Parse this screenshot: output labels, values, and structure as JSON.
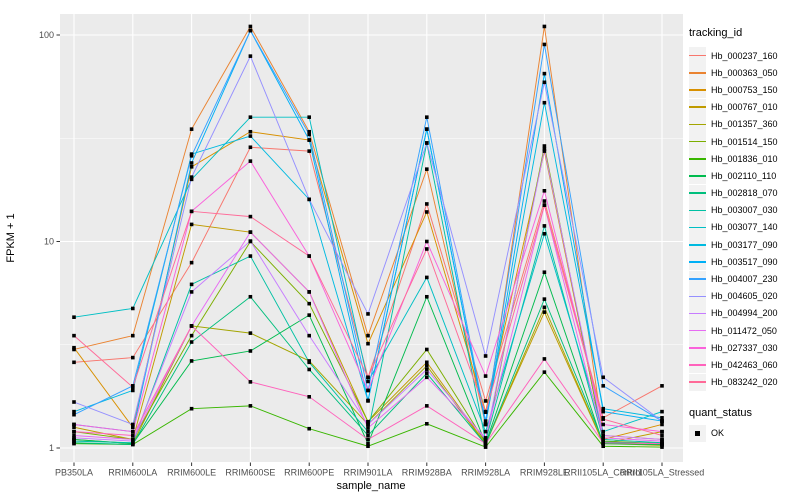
{
  "chart_data": {
    "type": "line",
    "xlabel": "sample_name",
    "ylabel": "FPKM + 1",
    "y_scale": "log10",
    "y_ticks": [
      1,
      10,
      100
    ],
    "ylim": [
      0.87,
      125
    ],
    "grid": true,
    "panel_color": "#EBEBEB",
    "gridline_color": "#FFFFFF",
    "point_marker": {
      "shape": "square",
      "color": "#000000"
    },
    "legend_title": "tracking_id",
    "quant_legend": {
      "title": "quant_status",
      "items": [
        {
          "label": "OK"
        }
      ]
    },
    "x_categories": [
      "PB350LA",
      "RRIM600LA",
      "RRIM600LE",
      "RRIM600SE",
      "RRIM600PE",
      "RRIM901LA",
      "RRIM928BA",
      "RRIM928LA",
      "RRIM928LE",
      "RRII105LA_Control",
      "RRII105LA_Stressed"
    ],
    "series": [
      {
        "name": "Hb_000237_160",
        "color": "#F8766D",
        "values": [
          2.6,
          2.74,
          7.9,
          28.6,
          27.4,
          2.2,
          15.2,
          1.69,
          15.7,
          1.4,
          2.0
        ]
      },
      {
        "name": "Hb_000363_050",
        "color": "#EA8331",
        "values": [
          3.0,
          3.5,
          35,
          110,
          34,
          3.5,
          22.4,
          1.3,
          110,
          1.15,
          1.1
        ]
      },
      {
        "name": "Hb_000753_150",
        "color": "#D89000",
        "values": [
          3.06,
          1.26,
          23,
          34,
          31,
          3.2,
          13.9,
          1.5,
          27.4,
          1.1,
          1.3
        ]
      },
      {
        "name": "Hb_000767_010",
        "color": "#C09B00",
        "values": [
          1.26,
          1.1,
          12.1,
          11.1,
          5.7,
          1.34,
          2.6,
          1.05,
          4.55,
          1.05,
          1.2
        ]
      },
      {
        "name": "Hb_001357_360",
        "color": "#A3A500",
        "values": [
          1.1,
          1.05,
          3.9,
          3.6,
          2.64,
          1.3,
          2.5,
          1.04,
          4.8,
          1.05,
          1.03
        ]
      },
      {
        "name": "Hb_001514_150",
        "color": "#7CAE00",
        "values": [
          1.2,
          1.1,
          3.5,
          10.0,
          5.0,
          1.34,
          3.0,
          1.06,
          29,
          1.08,
          1.05
        ]
      },
      {
        "name": "Hb_001836_010",
        "color": "#39B600",
        "values": [
          1.05,
          1.04,
          1.55,
          1.6,
          1.24,
          1.02,
          1.31,
          1.01,
          2.33,
          1.02,
          1.01
        ]
      },
      {
        "name": "Hb_002110_110",
        "color": "#00BB4E",
        "values": [
          1.1,
          1.05,
          2.64,
          2.95,
          4.4,
          1.05,
          5.4,
          1.05,
          7.1,
          1.05,
          1.04
        ]
      },
      {
        "name": "Hb_002818_070",
        "color": "#00BF7D",
        "values": [
          1.06,
          1.04,
          3.26,
          5.4,
          2.4,
          1.15,
          2.3,
          1.04,
          5.26,
          1.07,
          1.05
        ]
      },
      {
        "name": "Hb_003007_030",
        "color": "#00C1A3",
        "values": [
          1.08,
          1.06,
          6.2,
          8.5,
          2.6,
          1.2,
          30,
          1.08,
          11.9,
          1.1,
          1.06
        ]
      },
      {
        "name": "Hb_003077_140",
        "color": "#00BFC4",
        "values": [
          4.3,
          4.74,
          20,
          40,
          40,
          2.1,
          6.7,
          1.2,
          10.9,
          1.2,
          1.5
        ]
      },
      {
        "name": "Hb_003177_090",
        "color": "#00BAE0",
        "values": [
          1.5,
          1.9,
          26.5,
          32.4,
          16,
          1.69,
          35,
          1.31,
          47,
          1.55,
          1.4
        ]
      },
      {
        "name": "Hb_003517_090",
        "color": "#00B0F6",
        "values": [
          1.3,
          1.2,
          24,
          105,
          31,
          1.7,
          35,
          1.3,
          65,
          1.5,
          1.35
        ]
      },
      {
        "name": "Hb_004007_230",
        "color": "#35A2FF",
        "values": [
          1.45,
          2.0,
          26,
          105,
          33,
          1.9,
          40,
          1.35,
          90,
          2.0,
          1.35
        ]
      },
      {
        "name": "Hb_004605_020",
        "color": "#9590FF",
        "values": [
          1.67,
          1.3,
          20.5,
          79,
          16,
          4.46,
          30,
          2.79,
          59,
          2.2,
          1.35
        ]
      },
      {
        "name": "Hb_004994_200",
        "color": "#C77CFF",
        "values": [
          1.12,
          1.08,
          5.7,
          10.05,
          3.5,
          1.3,
          2.4,
          1.1,
          28,
          1.15,
          1.1
        ]
      },
      {
        "name": "Hb_011472_050",
        "color": "#E76BF3",
        "values": [
          1.15,
          1.1,
          3.9,
          11.1,
          5.7,
          1.25,
          2.2,
          1.12,
          15,
          1.12,
          1.08
        ]
      },
      {
        "name": "Hb_027337_030",
        "color": "#FA62DB",
        "values": [
          1.3,
          1.2,
          14,
          24.5,
          8.5,
          1.9,
          10,
          2.23,
          17.6,
          1.3,
          1.2
        ]
      },
      {
        "name": "Hb_042463_060",
        "color": "#FF62BC",
        "values": [
          1.2,
          1.15,
          3.9,
          2.09,
          1.77,
          1.1,
          1.6,
          1.05,
          2.7,
          1.06,
          1.05
        ]
      },
      {
        "name": "Hb_083242_020",
        "color": "#FF6A98",
        "values": [
          3.5,
          1.97,
          14,
          13.2,
          8.5,
          2.2,
          9.2,
          1.49,
          15,
          1.38,
          1.15
        ]
      }
    ]
  }
}
